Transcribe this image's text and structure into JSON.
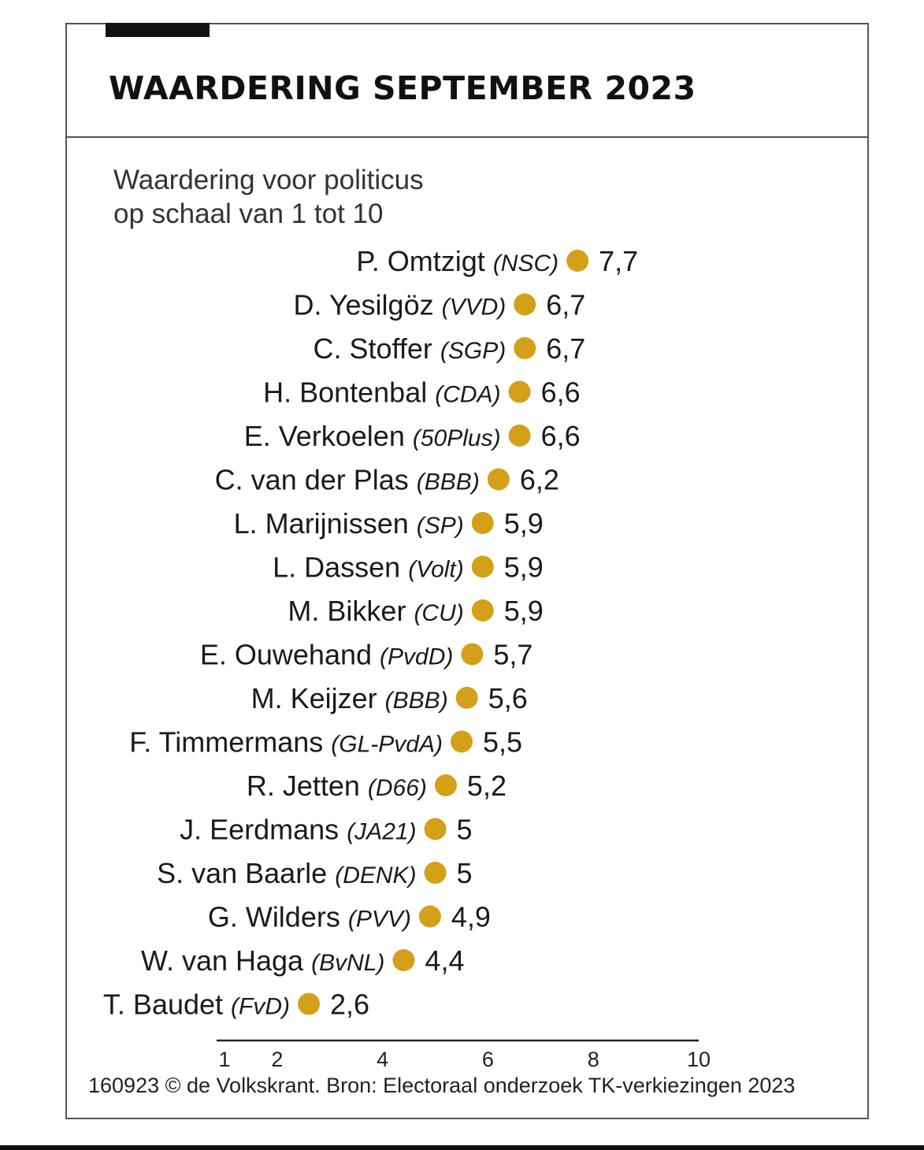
{
  "title": "WAARDERING SEPTEMBER 2023",
  "subtitle": [
    "Waardering voor politicus",
    "op schaal van 1 tot 10"
  ],
  "footer": "160923 © de Volkskrant. Bron: Electoraal onderzoek TK-verkiezingen 2023",
  "chart_data": {
    "type": "scatter",
    "title": "WAARDERING SEPTEMBER 2023",
    "xlim": [
      1,
      10
    ],
    "xticks": [
      "1",
      "2",
      "4",
      "6",
      "8",
      "10"
    ],
    "dot_color": "#D4A017",
    "items": [
      {
        "name": "P. Omtzigt",
        "party": "(NSC)",
        "value": 7.7,
        "label": "7,7"
      },
      {
        "name": "D. Yesilgöz",
        "party": "(VVD)",
        "value": 6.7,
        "label": "6,7"
      },
      {
        "name": "C. Stoffer",
        "party": "(SGP)",
        "value": 6.7,
        "label": "6,7"
      },
      {
        "name": "H. Bontenbal",
        "party": "(CDA)",
        "value": 6.6,
        "label": "6,6"
      },
      {
        "name": "E. Verkoelen",
        "party": "(50Plus)",
        "value": 6.6,
        "label": "6,6"
      },
      {
        "name": "C. van der Plas",
        "party": "(BBB)",
        "value": 6.2,
        "label": "6,2"
      },
      {
        "name": "L. Marijnissen",
        "party": "(SP)",
        "value": 5.9,
        "label": "5,9"
      },
      {
        "name": "L. Dassen",
        "party": "(Volt)",
        "value": 5.9,
        "label": "5,9"
      },
      {
        "name": "M. Bikker",
        "party": "(CU)",
        "value": 5.9,
        "label": "5,9"
      },
      {
        "name": "E. Ouwehand",
        "party": "(PvdD)",
        "value": 5.7,
        "label": "5,7"
      },
      {
        "name": "M. Keijzer",
        "party": "(BBB)",
        "value": 5.6,
        "label": "5,6"
      },
      {
        "name": "F. Timmermans",
        "party": "(GL-PvdA)",
        "value": 5.5,
        "label": "5,5"
      },
      {
        "name": "R. Jetten",
        "party": "(D66)",
        "value": 5.2,
        "label": "5,2"
      },
      {
        "name": "J. Eerdmans",
        "party": "(JA21)",
        "value": 5,
        "label": "5"
      },
      {
        "name": "S. van Baarle",
        "party": "(DENK)",
        "value": 5,
        "label": "5"
      },
      {
        "name": "G. Wilders",
        "party": "(PVV)",
        "value": 4.9,
        "label": "4,9"
      },
      {
        "name": "W. van Haga",
        "party": "(BvNL)",
        "value": 4.4,
        "label": "4,4"
      },
      {
        "name": "T. Baudet",
        "party": "(FvD)",
        "value": 2.6,
        "label": "2,6"
      }
    ]
  }
}
